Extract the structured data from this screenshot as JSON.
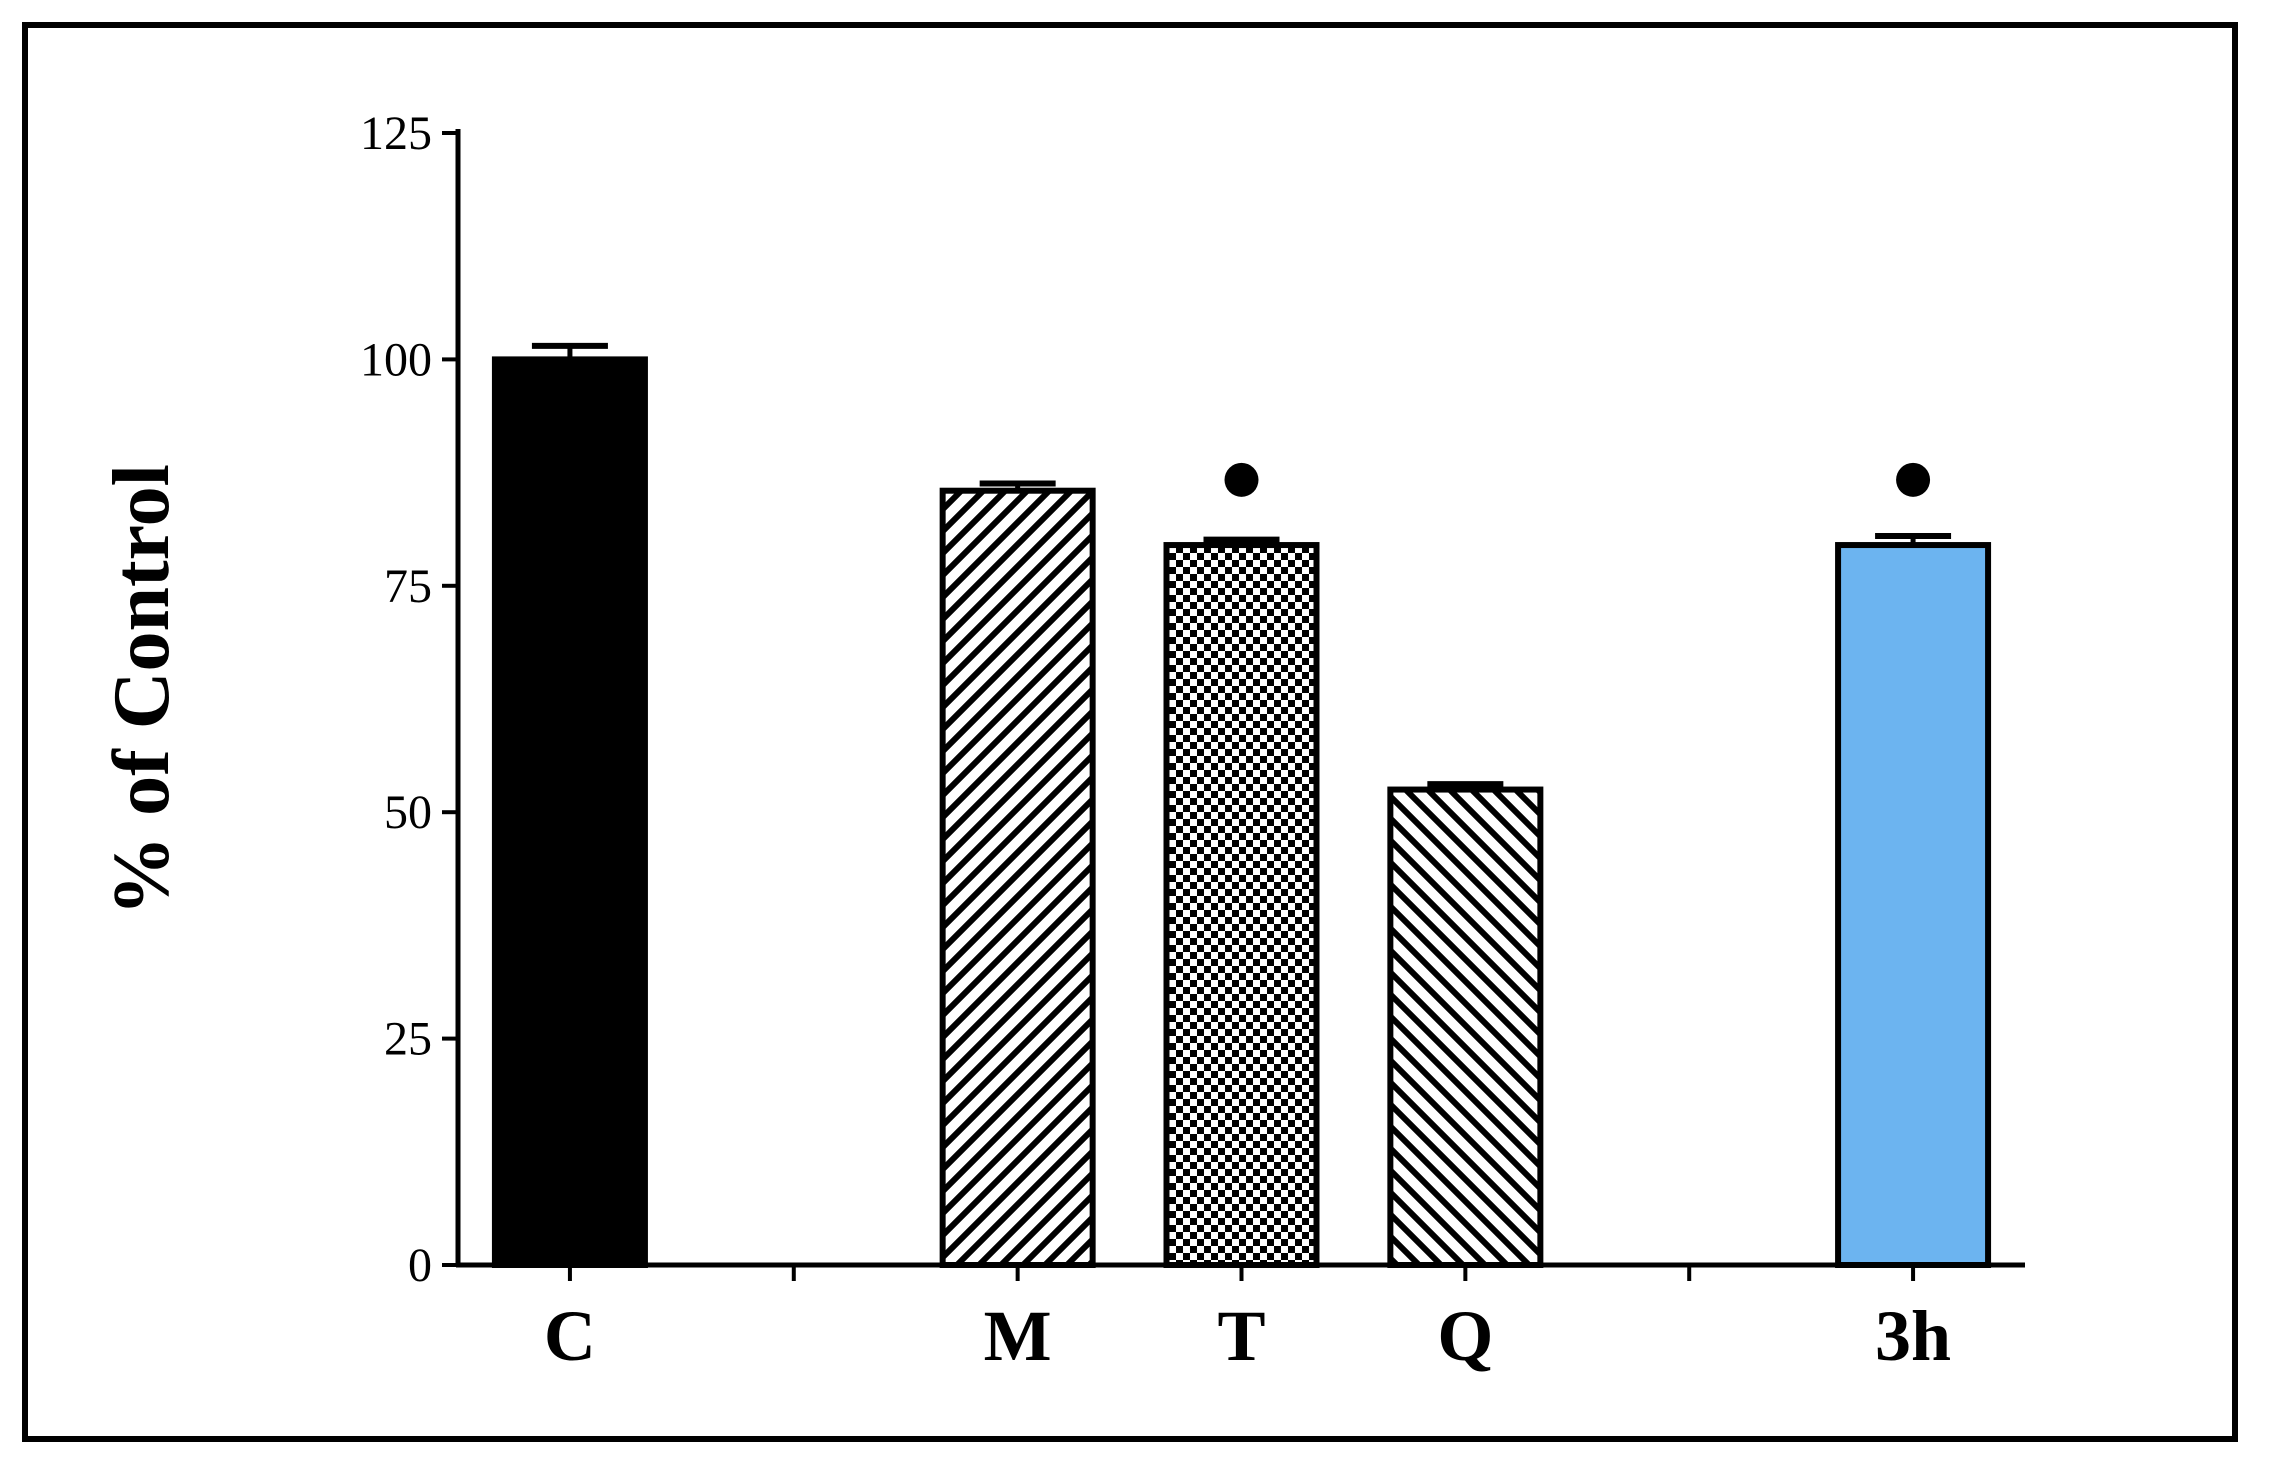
{
  "chart_data": {
    "type": "bar",
    "title": "",
    "xlabel": "",
    "ylabel": "% of Control",
    "ylim": [
      0,
      125
    ],
    "yticks": [
      0,
      25,
      50,
      75,
      100,
      125
    ],
    "grid": false,
    "legend": "none",
    "categories": [
      "C",
      "",
      "M",
      "T",
      "Q",
      "",
      "3h"
    ],
    "values": [
      100,
      null,
      85.5,
      79.5,
      52.5,
      null,
      79.5
    ],
    "errors": [
      1.5,
      null,
      0.8,
      0.6,
      0.6,
      null,
      1.0
    ],
    "significance_markers": [
      "",
      "",
      "",
      "●",
      "",
      "",
      "●"
    ],
    "fills": [
      "solid",
      "",
      "diagonal-forward",
      "checker",
      "diagonal-back",
      "",
      "solid"
    ],
    "colors": [
      "#000000",
      "",
      "#ffffff",
      "#ffffff",
      "#ffffff",
      "",
      "#6cb4f0"
    ]
  }
}
